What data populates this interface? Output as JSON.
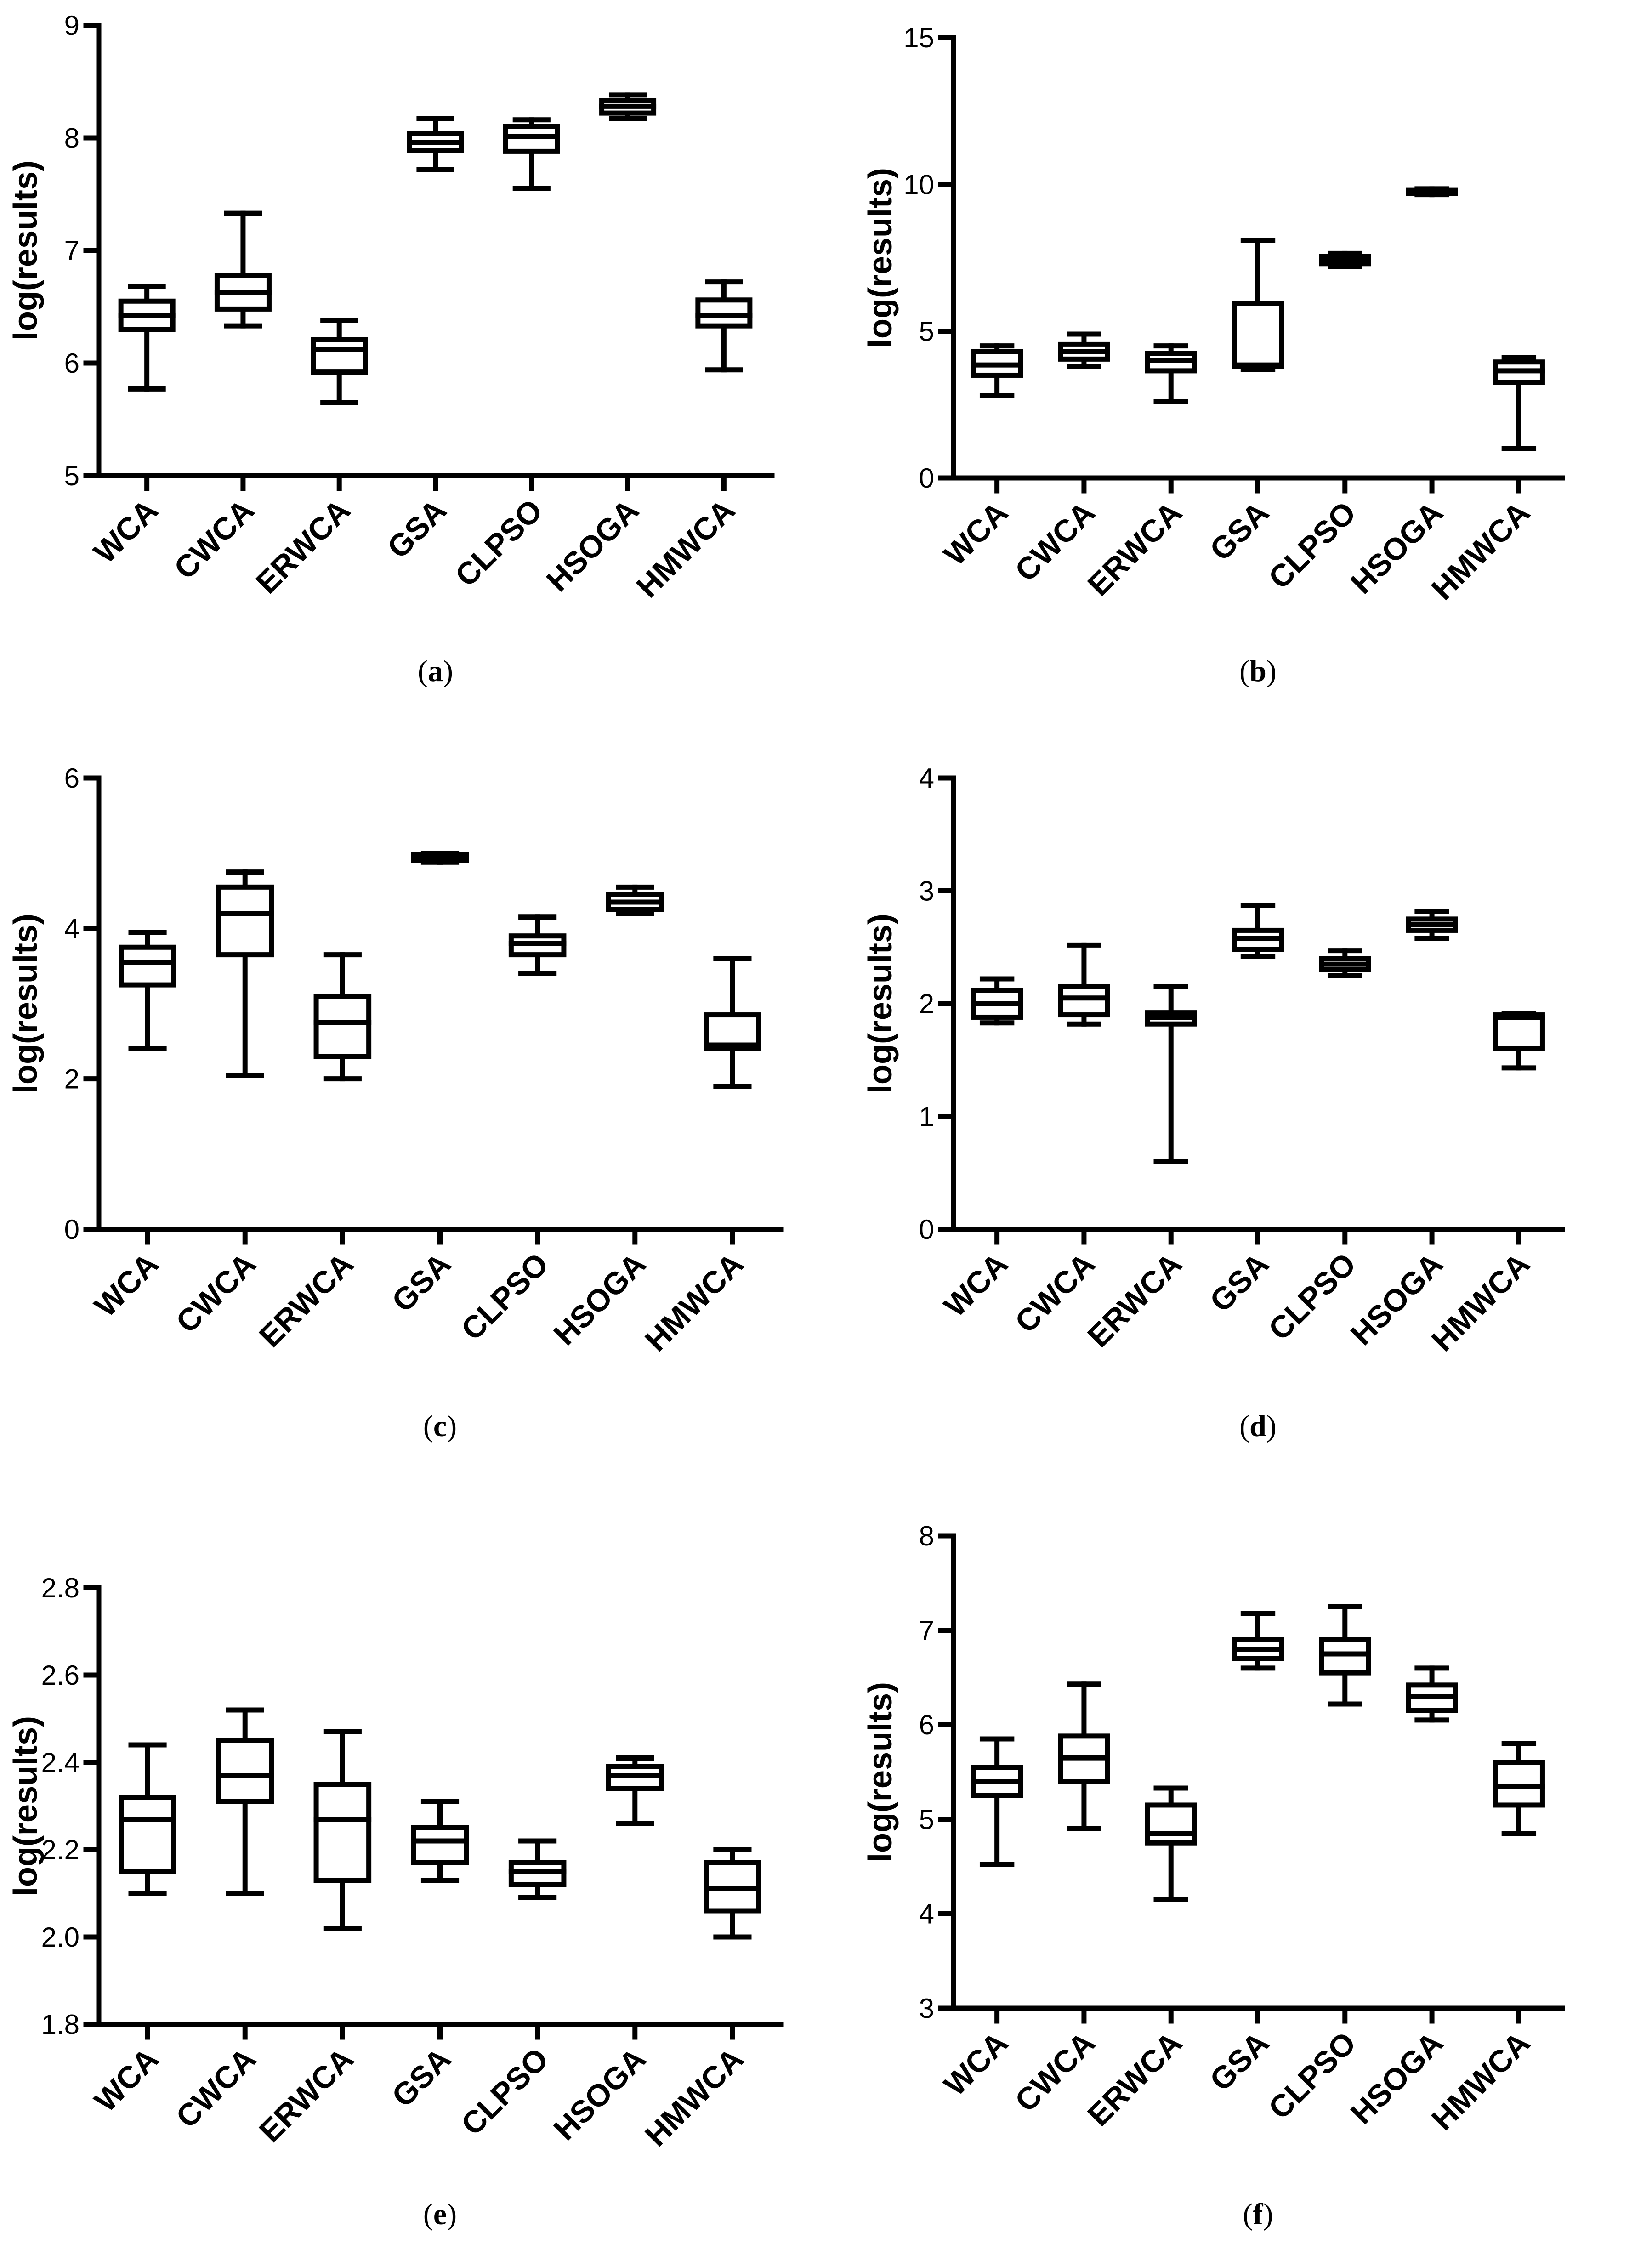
{
  "figure": {
    "ylabel": "log(results)",
    "categories": [
      "WCA",
      "CWCA",
      "ERWCA",
      "GSA",
      "CLPSO",
      "HSOGA",
      "HMWCA"
    ]
  },
  "chart_data": [
    {
      "type": "box",
      "caption_letter": "a",
      "caption": "(a)",
      "ylabel": "log(results)",
      "categories": [
        "WCA",
        "CWCA",
        "ERWCA",
        "GSA",
        "CLPSO",
        "HSOGA",
        "HMWCA"
      ],
      "ylim": [
        5,
        9
      ],
      "yticks": [
        5,
        6,
        7,
        8,
        9
      ],
      "yticklabels": [
        "5",
        "6",
        "7",
        "8",
        "9"
      ],
      "boxes": [
        {
          "min": 5.77,
          "q1": 6.3,
          "median": 6.42,
          "q3": 6.55,
          "max": 6.68
        },
        {
          "min": 6.33,
          "q1": 6.48,
          "median": 6.63,
          "q3": 6.78,
          "max": 7.33
        },
        {
          "min": 5.65,
          "q1": 5.92,
          "median": 6.12,
          "q3": 6.21,
          "max": 6.38
        },
        {
          "min": 7.72,
          "q1": 7.89,
          "median": 7.96,
          "q3": 8.04,
          "max": 8.17
        },
        {
          "min": 7.55,
          "q1": 7.88,
          "median": 8.01,
          "q3": 8.1,
          "max": 8.16
        },
        {
          "min": 8.17,
          "q1": 8.22,
          "median": 8.28,
          "q3": 8.33,
          "max": 8.38
        },
        {
          "min": 5.94,
          "q1": 6.33,
          "median": 6.42,
          "q3": 6.56,
          "max": 6.72
        }
      ]
    },
    {
      "type": "box",
      "caption_letter": "b",
      "caption": "(b)",
      "ylabel": "log(results)",
      "categories": [
        "WCA",
        "CWCA",
        "ERWCA",
        "GSA",
        "CLPSO",
        "HSOGA",
        "HMWCA"
      ],
      "ylim": [
        0,
        15
      ],
      "yticks": [
        0,
        5,
        10,
        15
      ],
      "yticklabels": [
        "0",
        "5",
        "10",
        "15"
      ],
      "boxes": [
        {
          "min": 2.8,
          "q1": 3.5,
          "median": 3.85,
          "q3": 4.3,
          "max": 4.5
        },
        {
          "min": 3.8,
          "q1": 4.05,
          "median": 4.3,
          "q3": 4.55,
          "max": 4.9
        },
        {
          "min": 2.6,
          "q1": 3.65,
          "median": 4.0,
          "q3": 4.25,
          "max": 4.5
        },
        {
          "min": 3.7,
          "q1": 3.8,
          "median": 3.85,
          "q3": 5.95,
          "max": 8.1
        },
        {
          "min": 7.2,
          "q1": 7.3,
          "median": 7.45,
          "q3": 7.55,
          "max": 7.65
        },
        {
          "min": 9.65,
          "q1": 9.7,
          "median": 9.75,
          "q3": 9.8,
          "max": 9.85
        },
        {
          "min": 1.0,
          "q1": 3.25,
          "median": 3.65,
          "q3": 3.95,
          "max": 4.1
        }
      ]
    },
    {
      "type": "box",
      "caption_letter": "c",
      "caption": "(c)",
      "ylabel": "log(results)",
      "categories": [
        "WCA",
        "CWCA",
        "ERWCA",
        "GSA",
        "CLPSO",
        "HSOGA",
        "HMWCA"
      ],
      "ylim": [
        0,
        6
      ],
      "yticks": [
        0,
        2,
        4,
        6
      ],
      "yticklabels": [
        "0",
        "2",
        "4",
        "6"
      ],
      "boxes": [
        {
          "min": 2.4,
          "q1": 3.25,
          "median": 3.55,
          "q3": 3.75,
          "max": 3.95
        },
        {
          "min": 2.05,
          "q1": 3.65,
          "median": 4.2,
          "q3": 4.55,
          "max": 4.75
        },
        {
          "min": 2.0,
          "q1": 2.3,
          "median": 2.75,
          "q3": 3.1,
          "max": 3.65
        },
        {
          "min": 4.88,
          "q1": 4.9,
          "median": 4.95,
          "q3": 4.98,
          "max": 5.0
        },
        {
          "min": 3.4,
          "q1": 3.65,
          "median": 3.8,
          "q3": 3.9,
          "max": 4.15
        },
        {
          "min": 4.2,
          "q1": 4.25,
          "median": 4.35,
          "q3": 4.45,
          "max": 4.55
        },
        {
          "min": 1.9,
          "q1": 2.4,
          "median": 2.45,
          "q3": 2.85,
          "max": 3.6
        }
      ]
    },
    {
      "type": "box",
      "caption_letter": "d",
      "caption": "(d)",
      "ylabel": "log(results)",
      "categories": [
        "WCA",
        "CWCA",
        "ERWCA",
        "GSA",
        "CLPSO",
        "HSOGA",
        "HMWCA"
      ],
      "ylim": [
        0,
        4
      ],
      "yticks": [
        0,
        1,
        2,
        3,
        4
      ],
      "yticklabels": [
        "0",
        "1",
        "2",
        "3",
        "4"
      ],
      "boxes": [
        {
          "min": 1.83,
          "q1": 1.88,
          "median": 2.0,
          "q3": 2.12,
          "max": 2.22
        },
        {
          "min": 1.82,
          "q1": 1.9,
          "median": 2.05,
          "q3": 2.15,
          "max": 2.52
        },
        {
          "min": 0.6,
          "q1": 1.82,
          "median": 1.88,
          "q3": 1.92,
          "max": 2.15
        },
        {
          "min": 2.42,
          "q1": 2.48,
          "median": 2.58,
          "q3": 2.65,
          "max": 2.87
        },
        {
          "min": 2.25,
          "q1": 2.3,
          "median": 2.35,
          "q3": 2.4,
          "max": 2.47
        },
        {
          "min": 2.58,
          "q1": 2.65,
          "median": 2.7,
          "q3": 2.75,
          "max": 2.82
        },
        {
          "min": 1.43,
          "q1": 1.6,
          "median": 1.88,
          "q3": 1.9,
          "max": 1.91
        }
      ]
    },
    {
      "type": "box",
      "caption_letter": "e",
      "caption": "(e)",
      "ylabel": "log(results)",
      "categories": [
        "WCA",
        "CWCA",
        "ERWCA",
        "GSA",
        "CLPSO",
        "HSOGA",
        "HMWCA"
      ],
      "ylim": [
        1.8,
        2.8
      ],
      "yticks": [
        1.8,
        2.0,
        2.2,
        2.4,
        2.6,
        2.8
      ],
      "yticklabels": [
        "1.8",
        "2.0",
        "2.2",
        "2.4",
        "2.6",
        "2.8"
      ],
      "boxes": [
        {
          "min": 2.1,
          "q1": 2.15,
          "median": 2.27,
          "q3": 2.32,
          "max": 2.44
        },
        {
          "min": 2.1,
          "q1": 2.31,
          "median": 2.37,
          "q3": 2.45,
          "max": 2.52
        },
        {
          "min": 2.02,
          "q1": 2.13,
          "median": 2.27,
          "q3": 2.35,
          "max": 2.47
        },
        {
          "min": 2.13,
          "q1": 2.17,
          "median": 2.22,
          "q3": 2.25,
          "max": 2.31
        },
        {
          "min": 2.09,
          "q1": 2.12,
          "median": 2.15,
          "q3": 2.17,
          "max": 2.22
        },
        {
          "min": 2.26,
          "q1": 2.34,
          "median": 2.37,
          "q3": 2.39,
          "max": 2.41
        },
        {
          "min": 2.0,
          "q1": 2.06,
          "median": 2.11,
          "q3": 2.17,
          "max": 2.2
        }
      ]
    },
    {
      "type": "box",
      "caption_letter": "f",
      "caption": "(f)",
      "ylabel": "log(results)",
      "categories": [
        "WCA",
        "CWCA",
        "ERWCA",
        "GSA",
        "CLPSO",
        "HSOGA",
        "HMWCA"
      ],
      "ylim": [
        3,
        8
      ],
      "yticks": [
        3,
        4,
        5,
        6,
        7,
        8
      ],
      "yticklabels": [
        "3",
        "4",
        "5",
        "6",
        "7",
        "8"
      ],
      "boxes": [
        {
          "min": 4.52,
          "q1": 5.25,
          "median": 5.4,
          "q3": 5.55,
          "max": 5.85
        },
        {
          "min": 4.9,
          "q1": 5.4,
          "median": 5.65,
          "q3": 5.88,
          "max": 6.43
        },
        {
          "min": 4.15,
          "q1": 4.75,
          "median": 4.85,
          "q3": 5.15,
          "max": 5.33
        },
        {
          "min": 6.6,
          "q1": 6.7,
          "median": 6.8,
          "q3": 6.9,
          "max": 7.18
        },
        {
          "min": 6.22,
          "q1": 6.55,
          "median": 6.75,
          "q3": 6.9,
          "max": 7.25
        },
        {
          "min": 6.05,
          "q1": 6.15,
          "median": 6.3,
          "q3": 6.42,
          "max": 6.6
        },
        {
          "min": 4.85,
          "q1": 5.15,
          "median": 5.35,
          "q3": 5.6,
          "max": 5.8
        }
      ]
    }
  ]
}
